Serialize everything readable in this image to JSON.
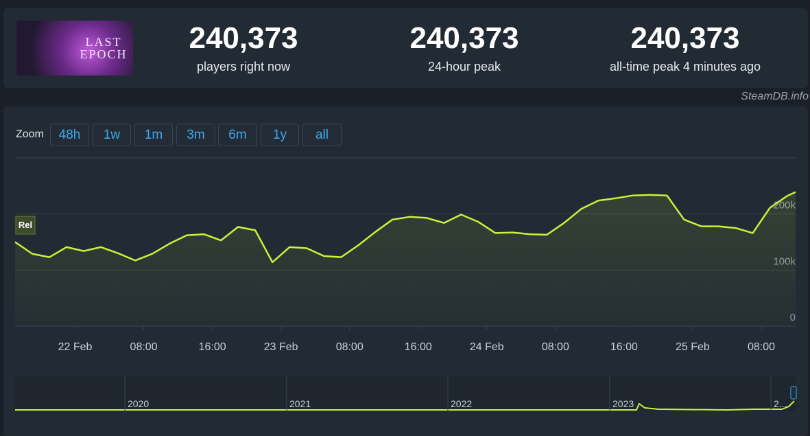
{
  "game": {
    "logo_text": "LAST EPOCH"
  },
  "stats": [
    {
      "value": "240,373",
      "label": "players right now"
    },
    {
      "value": "240,373",
      "label": "24-hour peak"
    },
    {
      "value": "240,373",
      "label": "all-time peak 4 minutes ago"
    }
  ],
  "source": "SteamDB.info",
  "zoom": {
    "label": "Zoom",
    "options": [
      "48h",
      "1w",
      "1m",
      "3m",
      "6m",
      "1y",
      "all"
    ]
  },
  "marker_label": "Rel",
  "chart_data": {
    "type": "line",
    "x": [
      "21 Feb 17:00",
      "21 Feb 19:00",
      "21 Feb 21:00",
      "21 Feb 23:00",
      "22 Feb 01:00",
      "22 Feb 03:00",
      "22 Feb 05:00",
      "22 Feb 07:00",
      "22 Feb 09:00",
      "22 Feb 11:00",
      "22 Feb 13:00",
      "22 Feb 15:00",
      "22 Feb 17:00",
      "22 Feb 19:00",
      "22 Feb 21:00",
      "22 Feb 23:00",
      "23 Feb 01:00",
      "23 Feb 03:00",
      "23 Feb 05:00",
      "23 Feb 07:00",
      "23 Feb 09:00",
      "23 Feb 11:00",
      "23 Feb 13:00",
      "23 Feb 15:00",
      "23 Feb 17:00",
      "23 Feb 19:00",
      "23 Feb 21:00",
      "23 Feb 23:00",
      "24 Feb 01:00",
      "24 Feb 03:00",
      "24 Feb 05:00",
      "24 Feb 07:00",
      "24 Feb 09:00",
      "24 Feb 11:00",
      "24 Feb 13:00",
      "24 Feb 15:00",
      "24 Feb 17:00",
      "24 Feb 19:00",
      "24 Feb 21:00",
      "24 Feb 23:00",
      "25 Feb 01:00",
      "25 Feb 03:00",
      "25 Feb 05:00",
      "25 Feb 07:00",
      "25 Feb 09:00",
      "25 Feb 11:00",
      "25 Feb 12:00"
    ],
    "series": [
      {
        "name": "Players",
        "color": "#c8f23c",
        "values": [
          150000,
          129000,
          123000,
          141000,
          134000,
          141000,
          130000,
          117000,
          129000,
          147000,
          162000,
          164000,
          153000,
          177000,
          171000,
          114000,
          141000,
          139000,
          125000,
          123000,
          144000,
          168000,
          190000,
          195000,
          193000,
          184000,
          199000,
          186000,
          166000,
          167000,
          164000,
          163000,
          184000,
          209000,
          224000,
          228000,
          233000,
          234000,
          233000,
          190000,
          178000,
          178000,
          175000,
          166000,
          211000,
          232000,
          239000
        ]
      }
    ],
    "xlim": [
      "21 Feb 17:00",
      "25 Feb 12:00"
    ],
    "xticks": [
      {
        "value": "22 Feb 00:00",
        "label": "22 Feb"
      },
      {
        "value": "22 Feb 08:00",
        "label": "08:00"
      },
      {
        "value": "22 Feb 16:00",
        "label": "16:00"
      },
      {
        "value": "23 Feb 00:00",
        "label": "23 Feb"
      },
      {
        "value": "23 Feb 08:00",
        "label": "08:00"
      },
      {
        "value": "23 Feb 16:00",
        "label": "16:00"
      },
      {
        "value": "24 Feb 00:00",
        "label": "24 Feb"
      },
      {
        "value": "24 Feb 08:00",
        "label": "08:00"
      },
      {
        "value": "24 Feb 16:00",
        "label": "16:00"
      },
      {
        "value": "25 Feb 00:00",
        "label": "25 Feb"
      },
      {
        "value": "25 Feb 08:00",
        "label": "08:00"
      }
    ],
    "ylim": [
      0,
      300000
    ],
    "yticks": [
      0,
      {
        "value": 100000,
        "label": "100k"
      },
      {
        "value": 200000,
        "label": "200k"
      }
    ],
    "grid": true
  },
  "navigator": {
    "labels": [
      "2020",
      "2021",
      "2022",
      "2023",
      "2..."
    ]
  }
}
